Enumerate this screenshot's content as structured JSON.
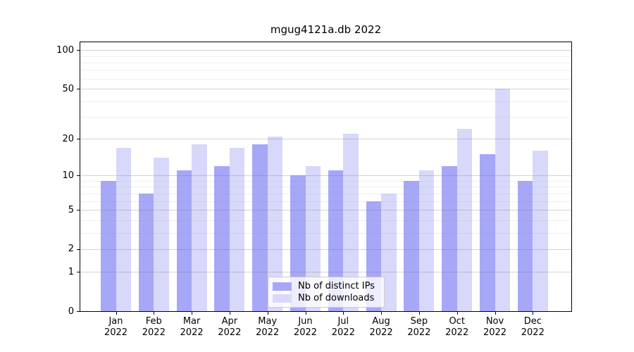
{
  "title": "mgug4121a.db 2022",
  "chart_data": {
    "type": "bar",
    "title": "mgug4121a.db 2022",
    "xlabel": "",
    "ylabel": "",
    "year": "2022",
    "categories": [
      "Jan",
      "Feb",
      "Mar",
      "Apr",
      "May",
      "Jun",
      "Jul",
      "Aug",
      "Sep",
      "Oct",
      "Nov",
      "Dec"
    ],
    "series": [
      {
        "name": "Nb of distinct IPs",
        "color": "#a7a7f8",
        "values": [
          9,
          7,
          11,
          12,
          18,
          10,
          11,
          6,
          9,
          12,
          15,
          9
        ]
      },
      {
        "name": "Nb of downloads",
        "color": "#d8d8fa",
        "values": [
          17,
          14,
          18,
          17,
          21,
          12,
          22,
          7,
          11,
          24,
          50,
          16
        ]
      }
    ],
    "yscale": "log1p",
    "ylim": [
      0,
      115
    ],
    "yticks": [
      100,
      50,
      20,
      10,
      5,
      2,
      1,
      0
    ],
    "minor_gridlines": [
      90,
      80,
      70,
      60,
      40,
      30,
      9,
      8,
      7,
      6,
      4,
      3
    ],
    "grid": true,
    "legend_position": "lower center"
  }
}
